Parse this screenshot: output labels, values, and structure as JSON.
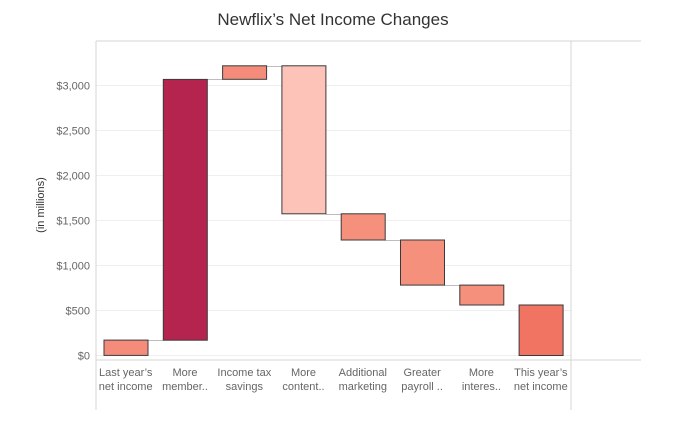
{
  "chart_data": {
    "type": "waterfall",
    "title": "Newflix’s Net Income Changes",
    "ylabel": "(in millions)",
    "xlabel": "",
    "ylim": [
      -50,
      3330
    ],
    "y_ticks": [
      {
        "value": 0,
        "label": "$0"
      },
      {
        "value": 500,
        "label": "$500"
      },
      {
        "value": 1000,
        "label": "$1,000"
      },
      {
        "value": 1500,
        "label": "$1,500"
      },
      {
        "value": 2000,
        "label": "$2,000"
      },
      {
        "value": 2500,
        "label": "$2,500"
      },
      {
        "value": 3000,
        "label": "$3,000"
      }
    ],
    "categories": [
      [
        "Last year’s",
        "net income"
      ],
      [
        "More",
        "member.."
      ],
      [
        "Income tax",
        "savings"
      ],
      [
        "More",
        "content.."
      ],
      [
        "Additional",
        "marketing"
      ],
      [
        "Greater",
        "payroll .."
      ],
      [
        "More",
        "interes.."
      ],
      [
        "This year’s",
        "net income"
      ]
    ],
    "bars": [
      {
        "start": 0,
        "end": 170,
        "color": "#f58c7b"
      },
      {
        "start": 170,
        "end": 3060,
        "color": "#b5244f"
      },
      {
        "start": 3060,
        "end": 3210,
        "color": "#f58c7b"
      },
      {
        "start": 3210,
        "end": 1570,
        "color": "#fdc3b8"
      },
      {
        "start": 1570,
        "end": 1280,
        "color": "#f5907d"
      },
      {
        "start": 1280,
        "end": 780,
        "color": "#f5907d"
      },
      {
        "start": 780,
        "end": 560,
        "color": "#f5907d"
      },
      {
        "start": 0,
        "end": 560,
        "color": "#f17362"
      }
    ],
    "grid": true
  }
}
